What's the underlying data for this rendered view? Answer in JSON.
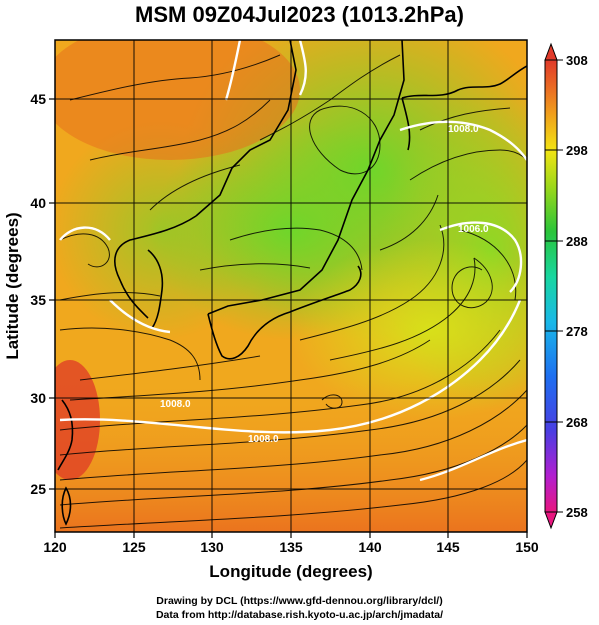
{
  "title": "MSM 09Z04Jul2023 (1013.2hPa)",
  "map": {
    "xlabel": "Longitude (degrees)",
    "ylabel": "Latitude  (degrees)",
    "lon_range": [
      120,
      150
    ],
    "lat_range": [
      22.4,
      47.6
    ],
    "x_ticks": [
      "120",
      "125",
      "130",
      "135",
      "140",
      "145",
      "150"
    ],
    "y_ticks": [
      "25",
      "30",
      "35",
      "40",
      "45"
    ],
    "grid": true,
    "contour_labels": [
      "1008.0",
      "1008.0",
      "1008.0",
      "1006.0"
    ]
  },
  "colorbar": {
    "min": 258,
    "max": 308,
    "tick_labels": [
      "308",
      "298",
      "288",
      "278",
      "268",
      "258"
    ],
    "colors": [
      "#e8167f",
      "#b21fd0",
      "#5b3fe0",
      "#1f4be8",
      "#1e8ef0",
      "#19c8e0",
      "#18d6a0",
      "#2ac43a",
      "#7fd41c",
      "#c2de14",
      "#f2e414",
      "#f2b41a",
      "#ef8a22",
      "#ea5a28",
      "#e03a2a"
    ]
  },
  "credits": {
    "line1": "Drawing by DCL (https://www.gfd-dennou.org/library/dcl/)",
    "line2": "Data from http://database.rish.kyoto-u.ac.jp/arch/jmadata/"
  }
}
